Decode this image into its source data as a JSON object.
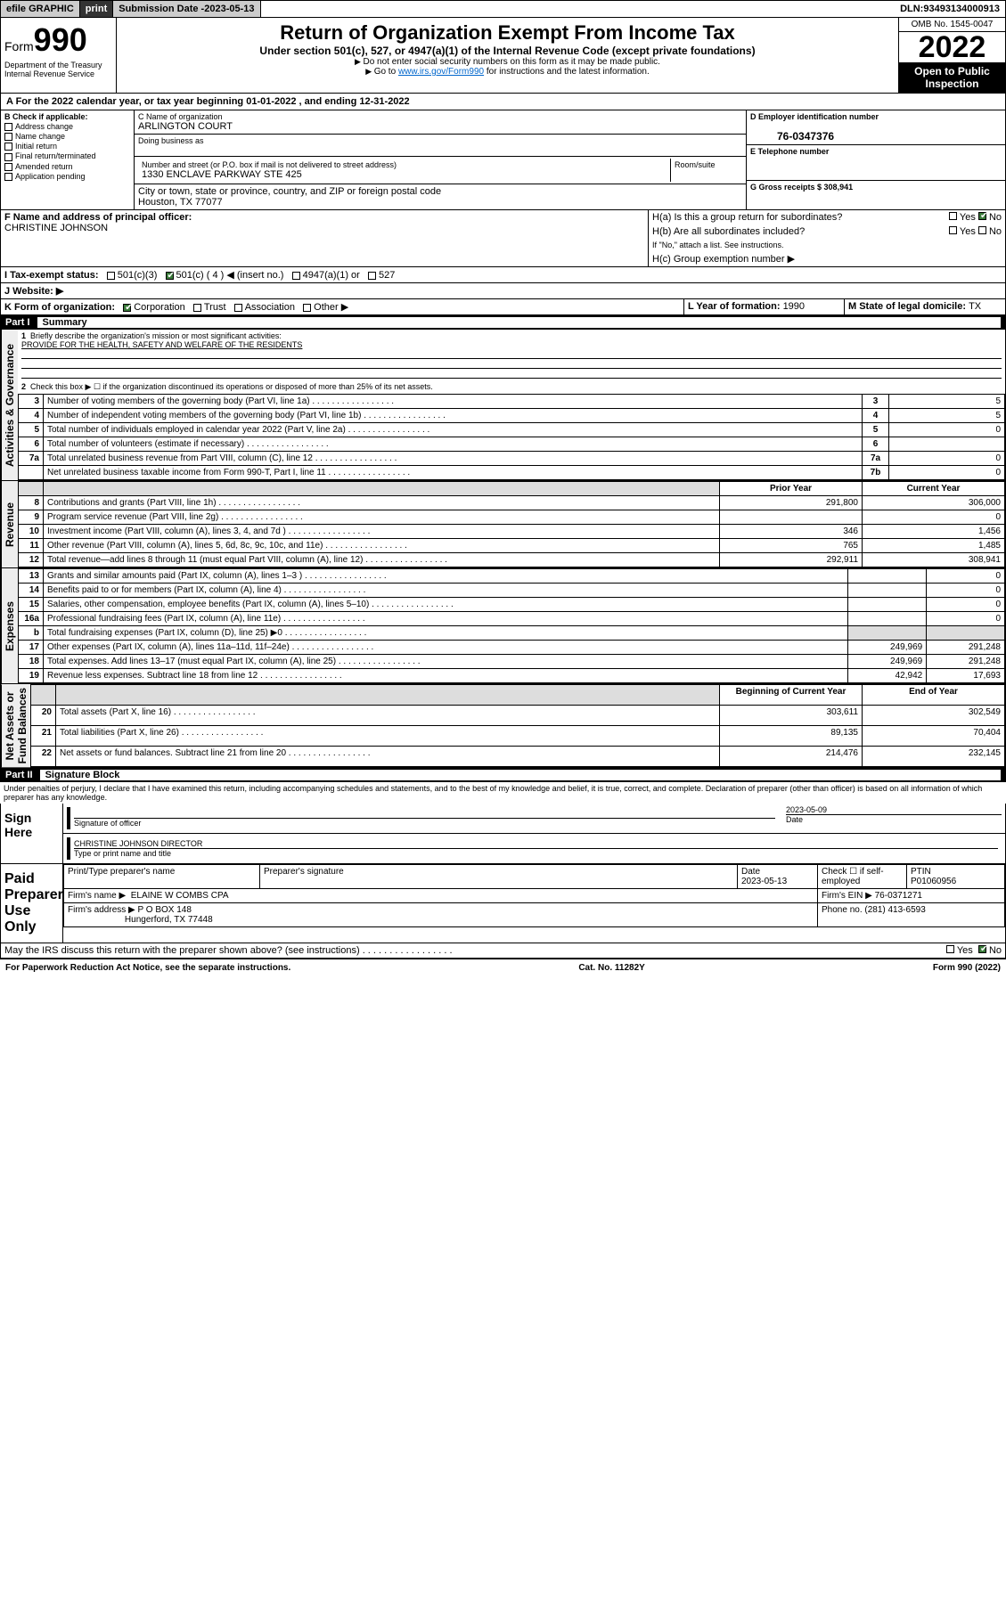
{
  "topbar": {
    "efile": "efile GRAPHIC",
    "print": "print",
    "sub_label": "Submission Date - ",
    "sub_date": "2023-05-13",
    "dln_label": "DLN: ",
    "dln": "93493134000913"
  },
  "header": {
    "form_prefix": "Form",
    "form_no": "990",
    "dept": "Department of the Treasury",
    "irs": "Internal Revenue Service",
    "title": "Return of Organization Exempt From Income Tax",
    "sub": "Under section 501(c), 527, or 4947(a)(1) of the Internal Revenue Code (except private foundations)",
    "note1": "Do not enter social security numbers on this form as it may be made public.",
    "note2_pre": "Go to ",
    "note2_link": "www.irs.gov/Form990",
    "note2_post": " for instructions and the latest information.",
    "omb": "OMB No. 1545-0047",
    "year": "2022",
    "opi": "Open to Public Inspection"
  },
  "period": {
    "a_label": "A For the 2022 calendar year, or tax year beginning ",
    "begin": "01-01-2022",
    "mid": " , and ending ",
    "end": "12-31-2022"
  },
  "sectionB": {
    "title": "B Check if applicable:",
    "items": [
      "Address change",
      "Name change",
      "Initial return",
      "Final return/terminated",
      "Amended return",
      "Application pending"
    ]
  },
  "sectionC": {
    "label": "C Name of organization",
    "name": "ARLINGTON COURT",
    "dba_label": "Doing business as",
    "dba": "",
    "addr_label": "Number and street (or P.O. box if mail is not delivered to street address)",
    "room_label": "Room/suite",
    "addr": "1330 ENCLAVE PARKWAY STE 425",
    "city_label": "City or town, state or province, country, and ZIP or foreign postal code",
    "city": "Houston, TX  77077"
  },
  "sectionD": {
    "label": "D Employer identification number",
    "val": "76-0347376"
  },
  "sectionE": {
    "label": "E Telephone number",
    "val": ""
  },
  "sectionG": {
    "label": "G Gross receipts $ ",
    "val": "308,941"
  },
  "sectionF": {
    "label": "F Name and address of principal officer:",
    "val": "CHRISTINE JOHNSON"
  },
  "sectionH": {
    "a": "H(a)  Is this a group return for subordinates?",
    "b": "H(b)  Are all subordinates included?",
    "b_note": "If \"No,\" attach a list. See instructions.",
    "c": "H(c)  Group exemption number ▶",
    "yes": "Yes",
    "no": "No"
  },
  "sectionI": {
    "label": "I   Tax-exempt status:",
    "o1": "501(c)(3)",
    "o2": "501(c) ( 4 ) ◀ (insert no.)",
    "o3": "4947(a)(1) or",
    "o4": "527"
  },
  "sectionJ": {
    "label": "J   Website: ▶"
  },
  "sectionK": {
    "label": "K Form of organization:",
    "o1": "Corporation",
    "o2": "Trust",
    "o3": "Association",
    "o4": "Other ▶"
  },
  "sectionL": {
    "label": "L Year of formation: ",
    "val": "1990"
  },
  "sectionM": {
    "label": "M State of legal domicile: ",
    "val": "TX"
  },
  "part1": {
    "num": "Part I",
    "title": "Summary"
  },
  "summary": {
    "q1": "Briefly describe the organization's mission or most significant activities:",
    "q1_ans": "PROVIDE FOR THE HEALTH, SAFETY AND WELFARE OF THE RESIDENTS",
    "q2": "Check this box ▶ ☐  if the organization discontinued its operations or disposed of more than 25% of its net assets.",
    "lines": [
      {
        "n": "3",
        "t": "Number of voting members of the governing body (Part VI, line 1a)",
        "nb": "3",
        "v": "5"
      },
      {
        "n": "4",
        "t": "Number of independent voting members of the governing body (Part VI, line 1b)",
        "nb": "4",
        "v": "5"
      },
      {
        "n": "5",
        "t": "Total number of individuals employed in calendar year 2022 (Part V, line 2a)",
        "nb": "5",
        "v": "0"
      },
      {
        "n": "6",
        "t": "Total number of volunteers (estimate if necessary)",
        "nb": "6",
        "v": ""
      },
      {
        "n": "7a",
        "t": "Total unrelated business revenue from Part VIII, column (C), line 12",
        "nb": "7a",
        "v": "0"
      },
      {
        "n": "",
        "t": "Net unrelated business taxable income from Form 990-T, Part I, line 11",
        "nb": "7b",
        "v": "0"
      }
    ],
    "col_prior": "Prior Year",
    "col_curr": "Current Year",
    "col_beg": "Beginning of Current Year",
    "col_end": "End of Year",
    "rev": [
      {
        "n": "8",
        "t": "Contributions and grants (Part VIII, line 1h)",
        "p": "291,800",
        "c": "306,000"
      },
      {
        "n": "9",
        "t": "Program service revenue (Part VIII, line 2g)",
        "p": "",
        "c": "0"
      },
      {
        "n": "10",
        "t": "Investment income (Part VIII, column (A), lines 3, 4, and 7d )",
        "p": "346",
        "c": "1,456"
      },
      {
        "n": "11",
        "t": "Other revenue (Part VIII, column (A), lines 5, 6d, 8c, 9c, 10c, and 11e)",
        "p": "765",
        "c": "1,485"
      },
      {
        "n": "12",
        "t": "Total revenue—add lines 8 through 11 (must equal Part VIII, column (A), line 12)",
        "p": "292,911",
        "c": "308,941"
      }
    ],
    "exp": [
      {
        "n": "13",
        "t": "Grants and similar amounts paid (Part IX, column (A), lines 1–3 )",
        "p": "",
        "c": "0"
      },
      {
        "n": "14",
        "t": "Benefits paid to or for members (Part IX, column (A), line 4)",
        "p": "",
        "c": "0"
      },
      {
        "n": "15",
        "t": "Salaries, other compensation, employee benefits (Part IX, column (A), lines 5–10)",
        "p": "",
        "c": "0"
      },
      {
        "n": "16a",
        "t": "Professional fundraising fees (Part IX, column (A), line 11e)",
        "p": "",
        "c": "0"
      },
      {
        "n": "b",
        "t": "Total fundraising expenses (Part IX, column (D), line 25) ▶0",
        "p": "shade",
        "c": "shade"
      },
      {
        "n": "17",
        "t": "Other expenses (Part IX, column (A), lines 11a–11d, 11f–24e)",
        "p": "249,969",
        "c": "291,248"
      },
      {
        "n": "18",
        "t": "Total expenses. Add lines 13–17 (must equal Part IX, column (A), line 25)",
        "p": "249,969",
        "c": "291,248"
      },
      {
        "n": "19",
        "t": "Revenue less expenses. Subtract line 18 from line 12",
        "p": "42,942",
        "c": "17,693"
      }
    ],
    "na": [
      {
        "n": "20",
        "t": "Total assets (Part X, line 16)",
        "p": "303,611",
        "c": "302,549"
      },
      {
        "n": "21",
        "t": "Total liabilities (Part X, line 26)",
        "p": "89,135",
        "c": "70,404"
      },
      {
        "n": "22",
        "t": "Net assets or fund balances. Subtract line 21 from line 20",
        "p": "214,476",
        "c": "232,145"
      }
    ],
    "vtabs": {
      "ag": "Activities & Governance",
      "rev": "Revenue",
      "exp": "Expenses",
      "na": "Net Assets or\nFund Balances"
    }
  },
  "part2": {
    "num": "Part II",
    "title": "Signature Block"
  },
  "penalty": "Under penalties of perjury, I declare that I have examined this return, including accompanying schedules and statements, and to the best of my knowledge and belief, it is true, correct, and complete. Declaration of preparer (other than officer) is based on all information of which preparer has any knowledge.",
  "sign": {
    "here": "Sign Here",
    "sig_label": "Signature of officer",
    "date_label": "Date",
    "date": "2023-05-09",
    "name": "CHRISTINE JOHNSON  DIRECTOR",
    "name_label": "Type or print name and title"
  },
  "paid": {
    "label": "Paid Preparer Use Only",
    "h1": "Print/Type preparer's name",
    "h2": "Preparer's signature",
    "h3": "Date",
    "h3v": "2023-05-13",
    "h4": "Check ☐ if self-employed",
    "h5": "PTIN",
    "h5v": "P01060956",
    "firm_label": "Firm's name   ▶",
    "firm": "ELAINE W COMBS CPA",
    "ein_label": "Firm's EIN ▶",
    "ein": "76-0371271",
    "addr_label": "Firm's address ▶",
    "addr1": "P O BOX 148",
    "addr2": "Hungerford, TX  77448",
    "phone_label": "Phone no. ",
    "phone": "(281) 413-6593"
  },
  "discuss": {
    "q": "May the IRS discuss this return with the preparer shown above? (see instructions)",
    "yes": "Yes",
    "no": "No"
  },
  "footer": {
    "l": "For Paperwork Reduction Act Notice, see the separate instructions.",
    "c": "Cat. No. 11282Y",
    "r": "Form 990 (2022)"
  }
}
